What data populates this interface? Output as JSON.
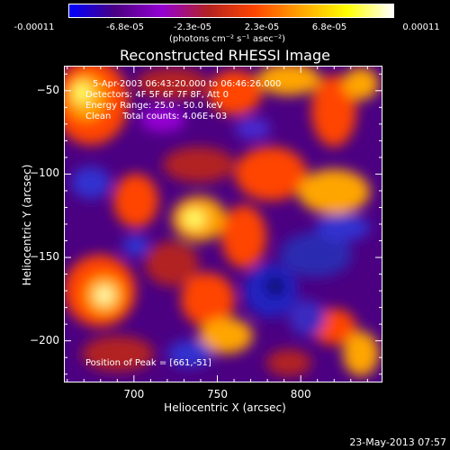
{
  "colorbar": {
    "colors": [
      "#0000ff",
      "#4b0082",
      "#9400d3",
      "#b22222",
      "#ff4500",
      "#ffa500",
      "#ffff00",
      "#ffffff"
    ],
    "tick_labels": [
      "-0.00011",
      "-6.8e-05",
      "-2.3e-05",
      "2.3e-05",
      "6.8e-05",
      "0.00011"
    ],
    "tick_values": [
      -0.00011,
      -6.8e-05,
      -2.3e-05,
      2.3e-05,
      6.8e-05,
      0.00011
    ],
    "unit_label": "(photons cm⁻² s⁻¹ asec⁻²)"
  },
  "chart_data": {
    "type": "heatmap",
    "title": "Reconstructed RHESSI Image",
    "xlabel": "Heliocentric X (arcsec)",
    "ylabel": "Heliocentric Y (arcsec)",
    "xlim": [
      658,
      849
    ],
    "ylim": [
      -225,
      -35
    ],
    "x_ticks": [
      700,
      750,
      800
    ],
    "y_ticks": [
      -50,
      -100,
      -150,
      -200
    ],
    "annotations": [
      "5-Apr-2003 06:43:20.000 to 06:46:26.000",
      "Detectors: 4F 5F 6F 7F 8F, Att 0",
      "Energy Range: 25.0 - 50.0 keV",
      "Clean    Total counts: 4.06E+03"
    ],
    "peak_label": "Position of Peak = [661,-51]",
    "peak": [
      661,
      -51
    ]
  },
  "footer": {
    "timestamp": "23-May-2013 07:57"
  }
}
